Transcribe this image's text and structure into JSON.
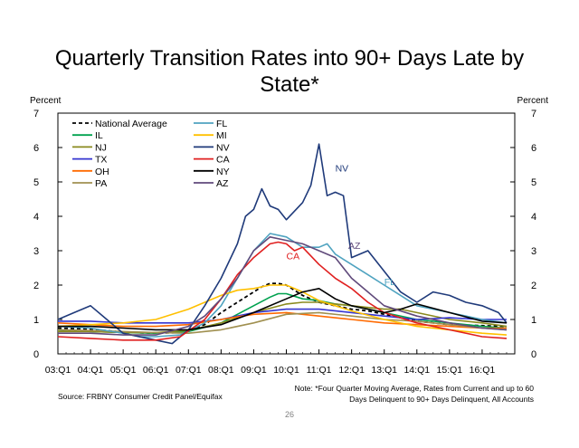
{
  "title": "Quarterly Transition Rates into 90+ Days Late by State*",
  "source": "Source: FRBNY Consumer Credit Panel/Equifax",
  "note_line1": "Note: *Four Quarter Moving Average, Rates from Current and up to 60",
  "note_line2": "Days Delinquent to 90+ Days Delinquent, All Accounts",
  "page_number": "26",
  "chart_data": {
    "type": "line",
    "y_left_label": "Percent",
    "y_right_label": "Percent",
    "ylim": [
      0,
      7
    ],
    "yticks": [
      0,
      1,
      2,
      3,
      4,
      5,
      6,
      7
    ],
    "x_tick_labels": [
      "03:Q1",
      "04:Q1",
      "05:Q1",
      "06:Q1",
      "07:Q1",
      "08:Q1",
      "09:Q1",
      "10:Q1",
      "11:Q1",
      "12:Q1",
      "13:Q1",
      "14:Q1",
      "15:Q1",
      "16:Q1"
    ],
    "x_start": "2003:Q1",
    "x_end": "2017:Q1",
    "legend_placement": "top-left",
    "annotations": [
      {
        "text": "NV",
        "x": 2011.5,
        "y": 5.3,
        "color": "#1f3a7a"
      },
      {
        "text": "AZ",
        "x": 2011.9,
        "y": 3.05,
        "color": "#604a7b"
      },
      {
        "text": "CA",
        "x": 2010.0,
        "y": 2.75,
        "color": "#e02020"
      },
      {
        "text": "FL",
        "x": 2013.0,
        "y": 2.0,
        "color": "#4fa3c0"
      }
    ],
    "series": [
      {
        "name": "National Average",
        "color": "#000000",
        "dash": true,
        "x": [
          2003,
          2004,
          2005,
          2006,
          2006.75,
          2007.5,
          2008,
          2008.5,
          2009,
          2009.25,
          2009.5,
          2009.75,
          2010,
          2010.5,
          2011,
          2011.5,
          2012,
          2012.5,
          2013,
          2013.5,
          2014,
          2015,
          2016,
          2016.75
        ],
        "y": [
          0.75,
          0.72,
          0.63,
          0.6,
          0.62,
          0.85,
          1.2,
          1.5,
          1.8,
          1.95,
          2.05,
          2.05,
          2.0,
          1.7,
          1.5,
          1.4,
          1.3,
          1.25,
          1.15,
          1.05,
          0.95,
          0.85,
          0.82,
          0.8
        ]
      },
      {
        "name": "IL",
        "color": "#00a24f",
        "x": [
          2003,
          2004,
          2005,
          2006,
          2007,
          2008,
          2009,
          2009.5,
          2009.75,
          2010,
          2010.5,
          2011,
          2011.5,
          2012,
          2012.5,
          2013,
          2014,
          2015,
          2016,
          2016.75
        ],
        "y": [
          0.7,
          0.65,
          0.62,
          0.6,
          0.65,
          0.9,
          1.4,
          1.65,
          1.75,
          1.75,
          1.6,
          1.55,
          1.45,
          1.4,
          1.3,
          1.2,
          1.0,
          0.9,
          0.8,
          0.75
        ]
      },
      {
        "name": "NJ",
        "color": "#8a8a1e",
        "x": [
          2003,
          2004,
          2005,
          2006,
          2007,
          2008,
          2009,
          2010,
          2010.5,
          2011,
          2011.5,
          2012,
          2012.5,
          2013,
          2013.5,
          2014,
          2015,
          2016,
          2016.75
        ],
        "y": [
          0.65,
          0.65,
          0.62,
          0.62,
          0.68,
          0.9,
          1.2,
          1.45,
          1.5,
          1.5,
          1.45,
          1.4,
          1.35,
          1.3,
          1.3,
          1.2,
          1.0,
          0.9,
          0.8
        ]
      },
      {
        "name": "TX",
        "color": "#3535d0",
        "x": [
          2003,
          2004,
          2005,
          2006,
          2007,
          2008,
          2009,
          2010,
          2011,
          2012,
          2013,
          2014,
          2015,
          2016,
          2016.75
        ],
        "y": [
          0.95,
          0.95,
          0.9,
          0.9,
          0.9,
          1.0,
          1.2,
          1.3,
          1.3,
          1.2,
          1.1,
          1.0,
          1.05,
          1.0,
          1.0
        ]
      },
      {
        "name": "OH",
        "color": "#ff6a00",
        "x": [
          2003,
          2004,
          2005,
          2006,
          2007,
          2008,
          2009,
          2010,
          2011,
          2012,
          2013,
          2014,
          2015,
          2016,
          2016.75
        ],
        "y": [
          0.9,
          0.85,
          0.8,
          0.8,
          0.85,
          1.0,
          1.15,
          1.2,
          1.1,
          1.0,
          0.9,
          0.85,
          0.8,
          0.75,
          0.75
        ]
      },
      {
        "name": "PA",
        "color": "#a09050",
        "x": [
          2003,
          2004,
          2005,
          2006,
          2007,
          2008,
          2009,
          2010,
          2011,
          2012,
          2013,
          2014,
          2015,
          2016,
          2016.75
        ],
        "y": [
          0.7,
          0.68,
          0.65,
          0.62,
          0.6,
          0.7,
          0.9,
          1.15,
          1.2,
          1.1,
          1.0,
          0.95,
          0.85,
          0.75,
          0.7
        ]
      },
      {
        "name": "FL",
        "color": "#4fa3c0",
        "x": [
          2003,
          2004,
          2005,
          2005.5,
          2006,
          2006.75,
          2007.5,
          2008,
          2008.5,
          2009,
          2009.5,
          2010,
          2010.5,
          2011,
          2011.25,
          2011.5,
          2012,
          2012.5,
          2013,
          2013.5,
          2014,
          2015,
          2016,
          2016.75
        ],
        "y": [
          0.8,
          0.75,
          0.6,
          0.5,
          0.5,
          0.55,
          0.9,
          1.4,
          2.2,
          3.0,
          3.5,
          3.4,
          3.1,
          3.1,
          3.2,
          2.9,
          2.6,
          2.3,
          2.0,
          1.7,
          1.4,
          1.2,
          1.0,
          0.9
        ]
      },
      {
        "name": "MI",
        "color": "#ffc000",
        "x": [
          2003,
          2004,
          2005,
          2006,
          2007,
          2007.5,
          2008,
          2008.5,
          2009,
          2009.5,
          2010,
          2010.5,
          2011,
          2011.5,
          2012,
          2013,
          2014,
          2015,
          2016,
          2016.75
        ],
        "y": [
          0.8,
          0.85,
          0.9,
          1.0,
          1.3,
          1.5,
          1.7,
          1.85,
          1.9,
          2.0,
          2.0,
          1.8,
          1.55,
          1.4,
          1.25,
          1.0,
          0.8,
          0.7,
          0.6,
          0.55
        ]
      },
      {
        "name": "NV",
        "color": "#1f3a7a",
        "x": [
          2003,
          2003.5,
          2004,
          2004.5,
          2005,
          2006,
          2006.5,
          2007,
          2007.5,
          2008,
          2008.5,
          2008.75,
          2009,
          2009.25,
          2009.5,
          2009.75,
          2010,
          2010.5,
          2010.75,
          2011,
          2011.25,
          2011.5,
          2011.75,
          2012,
          2012.5,
          2013,
          2013.5,
          2014,
          2014.5,
          2015,
          2015.5,
          2016,
          2016.5,
          2016.75
        ],
        "y": [
          1.0,
          1.2,
          1.4,
          1.0,
          0.6,
          0.4,
          0.3,
          0.7,
          1.4,
          2.2,
          3.2,
          4.0,
          4.2,
          4.8,
          4.3,
          4.2,
          3.9,
          4.4,
          4.9,
          6.1,
          4.6,
          4.7,
          4.6,
          2.8,
          3.0,
          2.4,
          1.8,
          1.5,
          1.8,
          1.7,
          1.5,
          1.4,
          1.2,
          0.9
        ]
      },
      {
        "name": "CA",
        "color": "#e02020",
        "x": [
          2003,
          2004,
          2005,
          2006,
          2006.75,
          2007.5,
          2008,
          2008.5,
          2009,
          2009.5,
          2009.75,
          2010,
          2010.25,
          2010.5,
          2011,
          2011.5,
          2012,
          2012.5,
          2013,
          2014,
          2015,
          2016,
          2016.75
        ],
        "y": [
          0.5,
          0.45,
          0.4,
          0.4,
          0.5,
          1.0,
          1.6,
          2.3,
          2.8,
          3.2,
          3.25,
          3.2,
          3.0,
          3.1,
          2.6,
          2.2,
          1.9,
          1.5,
          1.2,
          0.9,
          0.7,
          0.5,
          0.45
        ]
      },
      {
        "name": "NY",
        "color": "#000000",
        "x": [
          2003,
          2004,
          2005,
          2006,
          2007,
          2008,
          2009,
          2010,
          2010.5,
          2011,
          2011.5,
          2012,
          2013,
          2013.5,
          2014,
          2015,
          2016,
          2016.75
        ],
        "y": [
          0.8,
          0.8,
          0.75,
          0.7,
          0.7,
          0.85,
          1.2,
          1.6,
          1.8,
          1.9,
          1.6,
          1.4,
          1.2,
          1.3,
          1.45,
          1.2,
          0.95,
          0.9
        ]
      },
      {
        "name": "AZ",
        "color": "#604a7b",
        "x": [
          2003,
          2004,
          2005,
          2006,
          2007,
          2007.5,
          2008,
          2008.5,
          2009,
          2009.5,
          2010,
          2010.5,
          2011,
          2011.5,
          2012,
          2012.5,
          2013,
          2014,
          2015,
          2016,
          2016.75
        ],
        "y": [
          0.6,
          0.6,
          0.55,
          0.55,
          0.8,
          1.1,
          1.6,
          2.2,
          3.0,
          3.4,
          3.3,
          3.2,
          3.0,
          2.8,
          2.2,
          1.8,
          1.4,
          1.1,
          0.9,
          0.75,
          0.7
        ]
      }
    ]
  }
}
